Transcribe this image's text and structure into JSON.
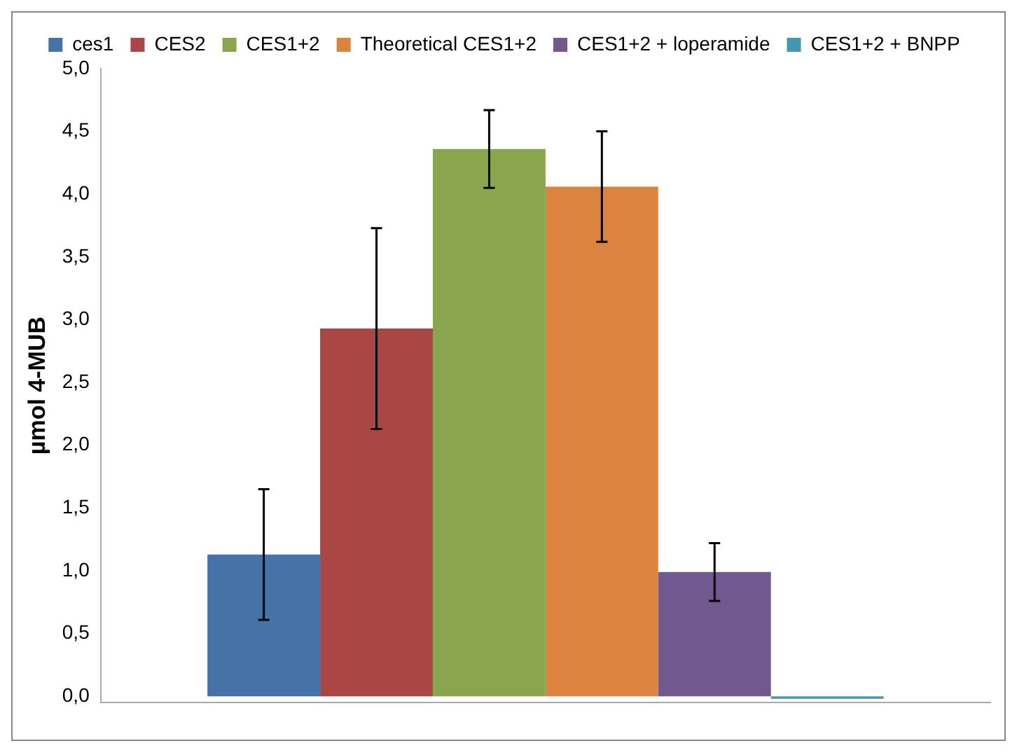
{
  "chart_data": {
    "type": "bar",
    "ylabel": "µmol 4-MUB",
    "categories": [
      null
    ],
    "series": [
      {
        "name": "ces1",
        "color": "#4672a8",
        "values": [
          1.13
        ],
        "errors": [
          0.52
        ]
      },
      {
        "name": "CES2",
        "color": "#aa4643",
        "values": [
          2.93
        ],
        "errors": [
          0.8
        ]
      },
      {
        "name": "CES1+2",
        "color": "#89a54e",
        "values": [
          4.36
        ],
        "errors": [
          0.31
        ]
      },
      {
        "name": "Theoretical CES1+2",
        "color": "#db843d",
        "values": [
          4.06
        ],
        "errors": [
          0.44
        ]
      },
      {
        "name": "CES1+2 + loperamide",
        "color": "#71588f",
        "values": [
          0.99
        ],
        "errors": [
          0.23
        ]
      },
      {
        "name": "CES1+2 + BNPP",
        "color": "#4198af",
        "values": [
          -0.02
        ]
      }
    ],
    "ylim": [
      -0.05,
      5
    ],
    "yticks": [
      {
        "value": 0,
        "label": "0,0"
      },
      {
        "value": 0.5,
        "label": "0,5"
      },
      {
        "value": 1,
        "label": "1,0"
      },
      {
        "value": 1.5,
        "label": "1,5"
      },
      {
        "value": 2,
        "label": "2,0"
      },
      {
        "value": 2.5,
        "label": "2,5"
      },
      {
        "value": 3,
        "label": "3,0"
      },
      {
        "value": 3.5,
        "label": "3,5"
      },
      {
        "value": 4,
        "label": "4,0"
      },
      {
        "value": 4.5,
        "label": "4,5"
      },
      {
        "value": 5,
        "label": "5,0"
      }
    ],
    "legend": "top",
    "grid": false
  }
}
